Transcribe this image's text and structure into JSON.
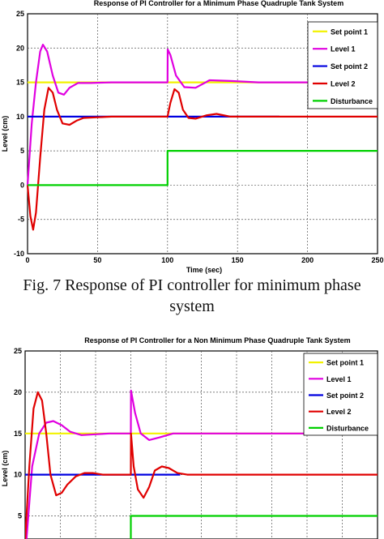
{
  "caption": {
    "line1": "Fig. 7 Response of PI controller for minimum phase",
    "line2": "system"
  },
  "chart_data": [
    {
      "type": "line",
      "title": "Response of PI Controller for a Minimum Phase Quadruple Tank System",
      "xlabel": "Time (sec)",
      "ylabel": "Level (cm)",
      "xlim": [
        0,
        250
      ],
      "ylim": [
        -10,
        25
      ],
      "xticks": [
        "0",
        "50",
        "100",
        "150",
        "200",
        "250"
      ],
      "yticks": [
        "-10",
        "-5",
        "0",
        "5",
        "10",
        "15",
        "20",
        "25"
      ],
      "grid": true,
      "legend_position": "top-right",
      "series": [
        {
          "name": "Set point 1",
          "color": "#f2f200",
          "x": [
            0,
            250
          ],
          "y": [
            15,
            15
          ]
        },
        {
          "name": "Level 1",
          "color": "#e000e0",
          "x": [
            0,
            3,
            6,
            9,
            11,
            14,
            18,
            22,
            26,
            30,
            36,
            45,
            60,
            80,
            100,
            100.1,
            102,
            106,
            112,
            120,
            130,
            145,
            165,
            190,
            205
          ],
          "y": [
            0,
            9,
            15,
            19.5,
            20.5,
            19.5,
            16,
            13.5,
            13.2,
            14.2,
            14.9,
            14.9,
            15,
            15,
            15,
            19.8,
            19,
            16,
            14.3,
            14.2,
            15.3,
            15.2,
            15,
            15,
            15
          ]
        },
        {
          "name": "Set point 2",
          "color": "#0000e0",
          "x": [
            0,
            180
          ],
          "y": [
            10,
            10
          ]
        },
        {
          "name": "Level 2",
          "color": "#e00000",
          "x": [
            0,
            2,
            4,
            6,
            9,
            12,
            15,
            18,
            21,
            25,
            30,
            35,
            40,
            50,
            60,
            80,
            100,
            102,
            105,
            108,
            111,
            115,
            120,
            128,
            135,
            145,
            160,
            180,
            250
          ],
          "y": [
            0,
            -4.5,
            -6.5,
            -4,
            4,
            11,
            14.2,
            13.5,
            11,
            9,
            8.8,
            9.4,
            9.8,
            9.9,
            10,
            10,
            10,
            12,
            14,
            13.5,
            11,
            9.8,
            9.7,
            10.2,
            10.4,
            10,
            10,
            10,
            10
          ]
        },
        {
          "name": "Disturbance",
          "color": "#00d000",
          "x": [
            0,
            100,
            100,
            250
          ],
          "y": [
            0,
            0,
            5,
            5
          ]
        }
      ]
    },
    {
      "type": "line",
      "title": "Response of PI Controller for a Non Minimum Phase Quadruple Tank System",
      "ylabel": "Level (cm)",
      "xlim": [
        0,
        250
      ],
      "ylim": [
        -10,
        25
      ],
      "yticks": [
        "25",
        "20",
        "15",
        "10",
        "5"
      ],
      "grid": true,
      "legend_position": "top-right",
      "series": [
        {
          "name": "Set point 1",
          "color": "#f2f200",
          "x": [
            0,
            250
          ],
          "y": [
            15,
            15
          ]
        },
        {
          "name": "Level 1",
          "color": "#e000e0",
          "x": [
            0,
            5,
            10,
            15,
            20,
            26,
            32,
            40,
            50,
            60,
            70,
            75,
            75.1,
            78,
            82,
            88,
            95,
            105,
            120,
            150,
            200,
            250
          ],
          "y": [
            0,
            11,
            15,
            16.3,
            16.5,
            16,
            15.2,
            14.8,
            14.9,
            15,
            15,
            15,
            20.2,
            17.5,
            15,
            14.2,
            14.5,
            15,
            15,
            15,
            15,
            15
          ]
        },
        {
          "name": "Set point 2",
          "color": "#0000e0",
          "x": [
            0,
            110
          ],
          "y": [
            10,
            10
          ]
        },
        {
          "name": "Level 2",
          "color": "#e00000",
          "x": [
            0,
            3,
            6,
            9,
            12,
            15,
            18,
            22,
            26,
            30,
            36,
            42,
            48,
            55,
            62,
            70,
            75,
            75.1,
            77,
            80,
            84,
            88,
            92,
            97,
            102,
            108,
            115,
            125,
            140,
            250
          ],
          "y": [
            2,
            11,
            18,
            20,
            19,
            15,
            10,
            7.5,
            7.8,
            8.8,
            9.8,
            10.2,
            10.2,
            10,
            10,
            10,
            10,
            15,
            11,
            8.2,
            7.2,
            8.5,
            10.5,
            11,
            10.8,
            10.2,
            10,
            10,
            10,
            10
          ]
        },
        {
          "name": "Disturbance",
          "color": "#00d000",
          "x": [
            0,
            75,
            75,
            250
          ],
          "y": [
            0,
            0,
            5,
            5
          ]
        }
      ]
    }
  ]
}
